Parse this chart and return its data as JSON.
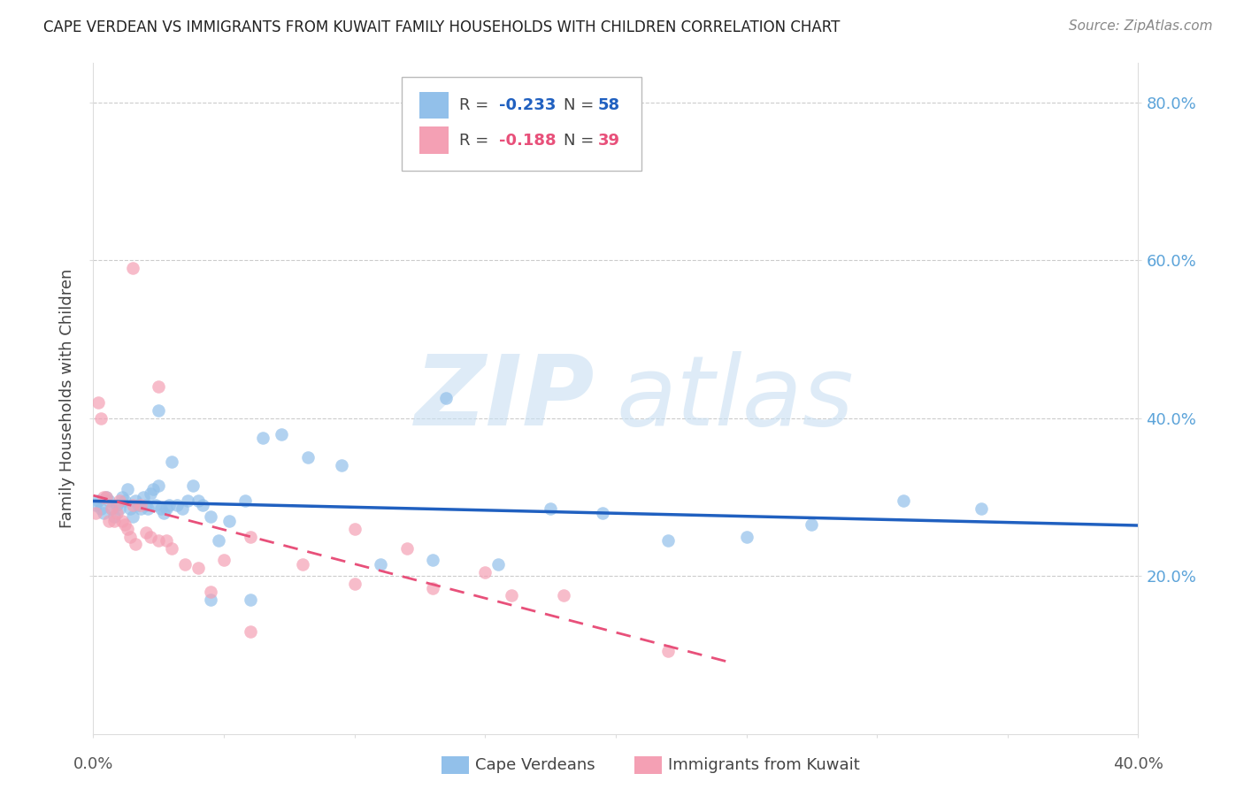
{
  "title": "CAPE VERDEAN VS IMMIGRANTS FROM KUWAIT FAMILY HOUSEHOLDS WITH CHILDREN CORRELATION CHART",
  "source": "Source: ZipAtlas.com",
  "ylabel": "Family Households with Children",
  "xlim": [
    0.0,
    0.4
  ],
  "ylim": [
    0.0,
    0.85
  ],
  "yticks_right": [
    0.2,
    0.4,
    0.6,
    0.8
  ],
  "right_tick_labels": [
    "20.0%",
    "40.0%",
    "60.0%",
    "80.0%"
  ],
  "legend_r1": "R = -0.233",
  "legend_n1": "N = 58",
  "legend_r2": "R = -0.188",
  "legend_n2": "N = 39",
  "blue_color": "#92C0EA",
  "pink_color": "#F4A0B4",
  "line_blue": "#2060C0",
  "line_pink": "#E8507A",
  "grid_color": "#CCCCCC",
  "axis_color": "#5BA3D9",
  "blue_scatter_x": [
    0.001,
    0.002,
    0.003,
    0.004,
    0.005,
    0.006,
    0.007,
    0.008,
    0.009,
    0.01,
    0.011,
    0.012,
    0.013,
    0.014,
    0.015,
    0.016,
    0.017,
    0.018,
    0.019,
    0.02,
    0.021,
    0.022,
    0.023,
    0.024,
    0.025,
    0.026,
    0.027,
    0.028,
    0.029,
    0.03,
    0.032,
    0.034,
    0.036,
    0.038,
    0.04,
    0.042,
    0.045,
    0.048,
    0.052,
    0.058,
    0.065,
    0.072,
    0.082,
    0.095,
    0.11,
    0.13,
    0.155,
    0.175,
    0.195,
    0.22,
    0.25,
    0.275,
    0.31,
    0.34,
    0.135,
    0.06,
    0.045,
    0.025
  ],
  "blue_scatter_y": [
    0.29,
    0.295,
    0.285,
    0.28,
    0.3,
    0.295,
    0.285,
    0.275,
    0.29,
    0.285,
    0.3,
    0.295,
    0.31,
    0.285,
    0.275,
    0.295,
    0.29,
    0.285,
    0.3,
    0.29,
    0.285,
    0.305,
    0.31,
    0.29,
    0.315,
    0.285,
    0.28,
    0.285,
    0.29,
    0.345,
    0.29,
    0.285,
    0.295,
    0.315,
    0.295,
    0.29,
    0.275,
    0.245,
    0.27,
    0.295,
    0.375,
    0.38,
    0.35,
    0.34,
    0.215,
    0.22,
    0.215,
    0.285,
    0.28,
    0.245,
    0.25,
    0.265,
    0.295,
    0.285,
    0.425,
    0.17,
    0.17,
    0.41
  ],
  "pink_scatter_x": [
    0.001,
    0.002,
    0.003,
    0.004,
    0.005,
    0.006,
    0.007,
    0.008,
    0.009,
    0.01,
    0.011,
    0.012,
    0.013,
    0.014,
    0.015,
    0.016,
    0.018,
    0.02,
    0.022,
    0.025,
    0.028,
    0.03,
    0.035,
    0.04,
    0.05,
    0.06,
    0.08,
    0.1,
    0.12,
    0.15,
    0.18,
    0.22,
    0.025,
    0.015,
    0.045,
    0.06,
    0.1,
    0.13,
    0.16
  ],
  "pink_scatter_y": [
    0.28,
    0.42,
    0.4,
    0.3,
    0.3,
    0.27,
    0.285,
    0.27,
    0.28,
    0.295,
    0.27,
    0.265,
    0.26,
    0.25,
    0.29,
    0.24,
    0.29,
    0.255,
    0.25,
    0.245,
    0.245,
    0.235,
    0.215,
    0.21,
    0.22,
    0.25,
    0.215,
    0.26,
    0.235,
    0.205,
    0.175,
    0.105,
    0.44,
    0.59,
    0.18,
    0.13,
    0.19,
    0.185,
    0.175
  ],
  "blue_line_x": [
    0.0,
    0.4
  ],
  "pink_line_x": [
    0.0,
    0.245
  ],
  "title_fontsize": 12,
  "source_fontsize": 11,
  "tick_fontsize": 13,
  "ylabel_fontsize": 13
}
